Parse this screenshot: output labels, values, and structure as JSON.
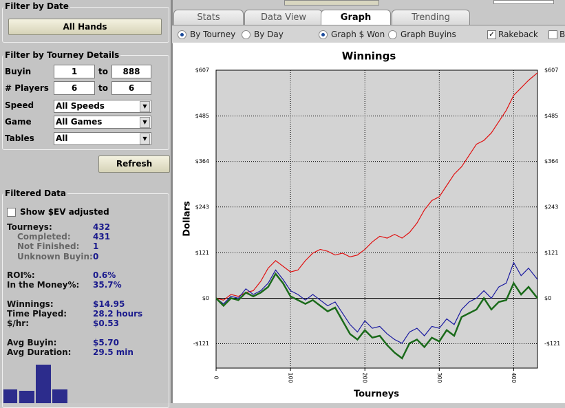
{
  "sidebar": {
    "date_filter": {
      "title": "Filter by Date",
      "button": "All Hands"
    },
    "tourney_filter": {
      "title": "Filter by Tourney Details",
      "buyin": {
        "label": "Buyin",
        "from": "1",
        "to_label": "to",
        "to": "888"
      },
      "players": {
        "label": "# Players",
        "from": "6",
        "to_label": "to",
        "to": "6"
      },
      "speed": {
        "label": "Speed",
        "value": "All Speeds"
      },
      "game": {
        "label": "Game",
        "value": "All Games"
      },
      "tables": {
        "label": "Tables",
        "value": "All"
      },
      "refresh": "Refresh"
    },
    "filtered": {
      "title": "Filtered Data",
      "ev_checkbox": "Show $EV adjusted",
      "stats": [
        {
          "label": "Tourneys:",
          "value": "432"
        },
        {
          "label": "Completed:",
          "value": "431"
        },
        {
          "label": "Not Finished:",
          "value": "1"
        },
        {
          "label": "Unknown Buyin:",
          "value": "0"
        },
        {
          "label": "ROI%:",
          "value": "0.6%"
        },
        {
          "label": "In the Money%:",
          "value": "35.7%"
        },
        {
          "label": "Winnings:",
          "value": "$14.95"
        },
        {
          "label": "Time Played:",
          "value": "28.2 hours"
        },
        {
          "label": "$/hr:",
          "value": "$0.53"
        },
        {
          "label": "Avg Buyin:",
          "value": "$5.70"
        },
        {
          "label": "Avg Duration:",
          "value": "29.5 min"
        }
      ]
    }
  },
  "tabs": [
    "Stats",
    "Data View",
    "Graph",
    "Trending"
  ],
  "options": {
    "by_tourney": "By Tourney",
    "by_day": "By Day",
    "graph_won": "Graph $ Won",
    "graph_buyins": "Graph Buyins",
    "rakeback": "Rakeback",
    "cut": "B"
  },
  "chart_data": {
    "type": "line",
    "title": "Winnings",
    "x_label": "Tourneys",
    "y_label": "Dollars",
    "x": [
      0,
      10,
      20,
      30,
      40,
      50,
      60,
      70,
      80,
      90,
      100,
      110,
      120,
      130,
      140,
      150,
      160,
      170,
      180,
      190,
      200,
      210,
      220,
      230,
      240,
      250,
      260,
      270,
      280,
      290,
      300,
      310,
      320,
      330,
      340,
      350,
      360,
      370,
      380,
      390,
      400,
      410,
      420,
      432
    ],
    "series": [
      {
        "color": "#e01010",
        "values": [
          0,
          -5,
          10,
          5,
          15,
          20,
          45,
          80,
          100,
          85,
          70,
          75,
          100,
          120,
          130,
          125,
          115,
          120,
          110,
          115,
          130,
          150,
          165,
          160,
          170,
          160,
          175,
          200,
          235,
          260,
          270,
          300,
          330,
          350,
          380,
          410,
          420,
          440,
          470,
          500,
          540,
          560,
          580,
          600
        ]
      },
      {
        "color": "#1a1aa0",
        "values": [
          0,
          -15,
          5,
          0,
          25,
          10,
          20,
          40,
          75,
          50,
          20,
          10,
          -5,
          10,
          -5,
          -20,
          -10,
          -40,
          -70,
          -90,
          -60,
          -80,
          -75,
          -95,
          -110,
          -120,
          -90,
          -80,
          -100,
          -75,
          -80,
          -55,
          -70,
          -30,
          -10,
          0,
          20,
          0,
          30,
          40,
          95,
          60,
          80,
          50
        ]
      },
      {
        "color": "#1a6a1a",
        "values": [
          0,
          -20,
          0,
          -5,
          15,
          5,
          15,
          30,
          65,
          40,
          5,
          -5,
          -15,
          -5,
          -20,
          -35,
          -25,
          -60,
          -95,
          -110,
          -85,
          -105,
          -100,
          -125,
          -145,
          -160,
          -120,
          -110,
          -130,
          -105,
          -115,
          -85,
          -100,
          -50,
          -40,
          -30,
          0,
          -30,
          -10,
          -5,
          40,
          10,
          30,
          0
        ]
      }
    ],
    "xlim": [
      0,
      432
    ],
    "ylim": [
      -186,
      607
    ],
    "xticks": [
      0,
      100,
      200,
      300,
      400
    ],
    "yticks": [
      {
        "value": 607,
        "label": "$607"
      },
      {
        "value": 485,
        "label": "$485"
      },
      {
        "value": 364,
        "label": "$364"
      },
      {
        "value": 243,
        "label": "$243"
      },
      {
        "value": 121,
        "label": "$121"
      },
      {
        "value": 0,
        "label": "$0"
      },
      {
        "value": -121,
        "label": "-$121"
      }
    ],
    "grid": true
  }
}
